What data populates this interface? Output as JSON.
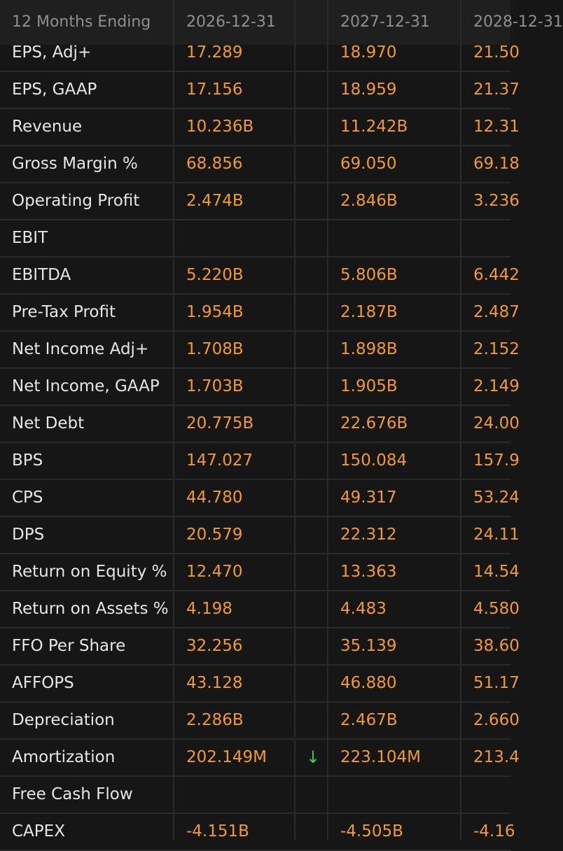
{
  "header": {
    "label": "12 Months Ending",
    "periods": [
      "2026-12-31",
      "2027-12-31",
      "2028-12-31"
    ]
  },
  "colors": {
    "value": "#f19a2f",
    "label": "#e6e6e6",
    "header_text": "#8f8f8f",
    "down_arrow": "#38d14a",
    "background": "#161616"
  },
  "rows": [
    {
      "label": "EPS, Adj+",
      "v1": "17.289",
      "v2": "18.970",
      "v3": "21.50",
      "trend": ""
    },
    {
      "label": "EPS, GAAP",
      "v1": "17.156",
      "v2": "18.959",
      "v3": "21.37",
      "trend": ""
    },
    {
      "label": "Revenue",
      "v1": "10.236B",
      "v2": "11.242B",
      "v3": "12.31",
      "trend": ""
    },
    {
      "label": "Gross Margin %",
      "v1": "68.856",
      "v2": "69.050",
      "v3": "69.18",
      "trend": ""
    },
    {
      "label": "Operating Profit",
      "v1": "2.474B",
      "v2": "2.846B",
      "v3": "3.236",
      "trend": ""
    },
    {
      "label": "EBIT",
      "v1": "",
      "v2": "",
      "v3": "",
      "trend": ""
    },
    {
      "label": "EBITDA",
      "v1": "5.220B",
      "v2": "5.806B",
      "v3": "6.442",
      "trend": ""
    },
    {
      "label": "Pre-Tax Profit",
      "v1": "1.954B",
      "v2": "2.187B",
      "v3": "2.487",
      "trend": ""
    },
    {
      "label": "Net Income Adj+",
      "v1": "1.708B",
      "v2": "1.898B",
      "v3": "2.152",
      "trend": ""
    },
    {
      "label": "Net Income, GAAP",
      "v1": "1.703B",
      "v2": "1.905B",
      "v3": "2.149",
      "trend": ""
    },
    {
      "label": "Net Debt",
      "v1": "20.775B",
      "v2": "22.676B",
      "v3": "24.00",
      "trend": ""
    },
    {
      "label": "BPS",
      "v1": "147.027",
      "v2": "150.084",
      "v3": "157.9",
      "trend": ""
    },
    {
      "label": "CPS",
      "v1": "44.780",
      "v2": "49.317",
      "v3": "53.24",
      "trend": ""
    },
    {
      "label": "DPS",
      "v1": "20.579",
      "v2": "22.312",
      "v3": "24.11",
      "trend": ""
    },
    {
      "label": "Return on Equity %",
      "v1": "12.470",
      "v2": "13.363",
      "v3": "14.54",
      "trend": ""
    },
    {
      "label": "Return on Assets %",
      "v1": "4.198",
      "v2": "4.483",
      "v3": "4.580",
      "trend": ""
    },
    {
      "label": "FFO Per Share",
      "v1": "32.256",
      "v2": "35.139",
      "v3": "38.60",
      "trend": ""
    },
    {
      "label": "AFFOPS",
      "v1": "43.128",
      "v2": "46.880",
      "v3": "51.17",
      "trend": ""
    },
    {
      "label": "Depreciation",
      "v1": "2.286B",
      "v2": "2.467B",
      "v3": "2.660",
      "trend": ""
    },
    {
      "label": "Amortization",
      "v1": "202.149M",
      "v2": "223.104M",
      "v3": "213.4",
      "trend": "↓"
    },
    {
      "label": "Free Cash Flow",
      "v1": "",
      "v2": "",
      "v3": "",
      "trend": ""
    },
    {
      "label": "CAPEX",
      "v1": "-4.151B",
      "v2": "-4.505B",
      "v3": "-4.16",
      "trend": ""
    }
  ]
}
